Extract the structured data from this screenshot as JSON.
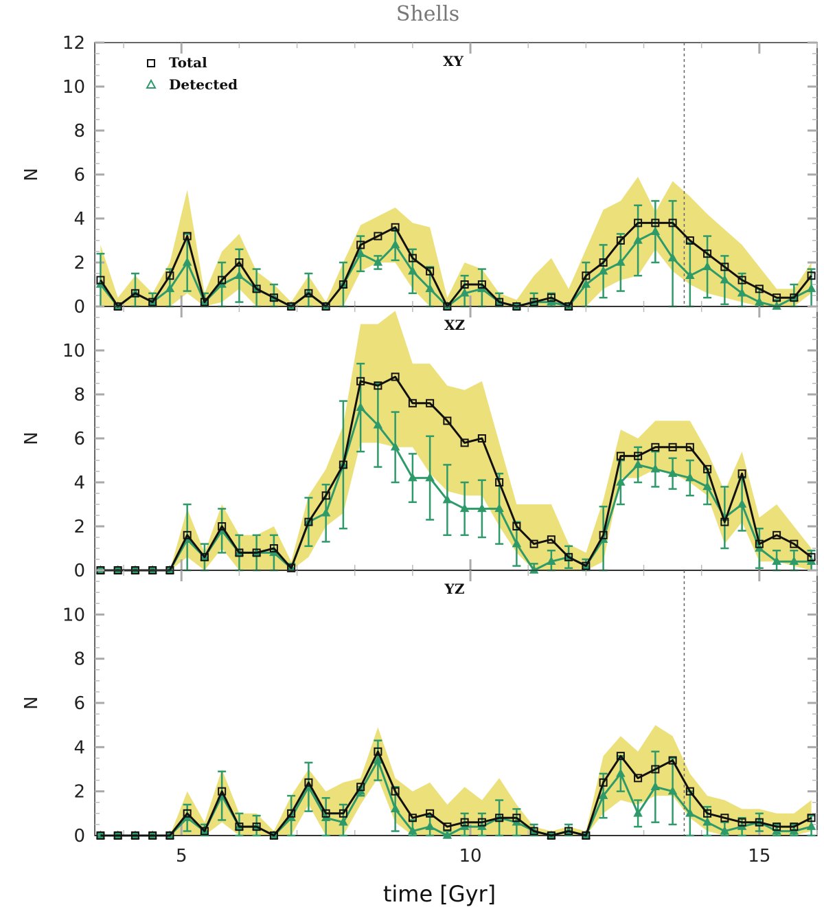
{
  "chart_data": {
    "type": "line",
    "title": "Shells",
    "xlabel": "time [Gyr]",
    "ylabel": "N",
    "xlim": [
      3.5,
      16.0
    ],
    "x_ticks": [
      5,
      10,
      15
    ],
    "y_ticks": [
      0,
      2,
      4,
      6,
      8,
      10,
      12
    ],
    "vline_x": 13.7,
    "colors": {
      "total": "#111111",
      "detected": "#2e9a6a",
      "band": "#ece07a"
    },
    "legend": {
      "total_label": "Total",
      "detected_label": "Detected"
    },
    "x": [
      3.6,
      3.9,
      4.2,
      4.5,
      4.8,
      5.1,
      5.4,
      5.7,
      6.0,
      6.3,
      6.6,
      6.9,
      7.2,
      7.5,
      7.8,
      8.1,
      8.4,
      8.7,
      9.0,
      9.3,
      9.6,
      9.9,
      10.2,
      10.5,
      10.8,
      11.1,
      11.4,
      11.7,
      12.0,
      12.3,
      12.6,
      12.9,
      13.2,
      13.5,
      13.8,
      14.1,
      14.4,
      14.7,
      15.0,
      15.3,
      15.6,
      15.9
    ],
    "panels": [
      {
        "label": "XY",
        "ylim": [
          0,
          12
        ],
        "total": [
          1.2,
          0,
          0.6,
          0.2,
          1.4,
          3.2,
          0.2,
          1.2,
          2.0,
          0.8,
          0.4,
          0,
          0.6,
          0,
          1.0,
          2.8,
          3.2,
          3.6,
          2.2,
          1.6,
          0,
          1.0,
          1.0,
          0.2,
          0,
          0.2,
          0.4,
          0,
          1.4,
          2.0,
          3.0,
          3.8,
          3.8,
          3.8,
          3.0,
          2.4,
          1.8,
          1.2,
          0.8,
          0.4,
          0.4,
          1.4
        ],
        "detected": [
          1.0,
          0,
          0.6,
          0.2,
          0.8,
          2.0,
          0.2,
          1.0,
          1.4,
          0.8,
          0.4,
          0,
          0.6,
          0,
          1.0,
          2.4,
          2.0,
          2.8,
          1.6,
          0.8,
          0,
          0.6,
          0.8,
          0.2,
          0,
          0.2,
          0.2,
          0,
          1.0,
          1.6,
          2.0,
          3.0,
          3.4,
          2.2,
          1.4,
          1.8,
          1.2,
          0.6,
          0.2,
          0,
          0.4,
          0.8
        ],
        "error": [
          1.4,
          0.1,
          0.9,
          0.4,
          0.9,
          1.3,
          0.4,
          1.0,
          1.2,
          0.9,
          0.6,
          0.1,
          0.9,
          0.1,
          1.0,
          0.8,
          0.3,
          0.7,
          1.0,
          1.0,
          0.1,
          0.8,
          0.9,
          0.4,
          0.1,
          0.4,
          0.4,
          0.1,
          1.0,
          1.2,
          1.3,
          1.6,
          1.4,
          2.6,
          1.5,
          1.4,
          1.1,
          0.9,
          0.6,
          0.3,
          0.6,
          0.9
        ],
        "band_upper": [
          2.8,
          0.4,
          1.4,
          0.6,
          2.0,
          5.3,
          0.6,
          2.5,
          3.3,
          1.6,
          1.0,
          0.2,
          1.4,
          0.2,
          2.0,
          3.7,
          4.1,
          4.5,
          3.8,
          3.6,
          0.4,
          2.0,
          1.7,
          0.6,
          0.3,
          1.4,
          2.2,
          0.8,
          2.6,
          4.4,
          4.8,
          5.9,
          4.3,
          5.7,
          5.0,
          4.2,
          3.5,
          2.8,
          1.8,
          0.8,
          0.8,
          2.0
        ],
        "band_lower": [
          0,
          0,
          0,
          0,
          0,
          0.6,
          0,
          0.2,
          0.8,
          0,
          0,
          0,
          0,
          0,
          0,
          1.6,
          2.0,
          2.0,
          0.8,
          0,
          0,
          0,
          0,
          0,
          0,
          0,
          0,
          0,
          0,
          0.8,
          1.2,
          1.4,
          2.6,
          1.6,
          1.0,
          0.6,
          0.4,
          0.2,
          0,
          0,
          0,
          0.6
        ]
      },
      {
        "label": "XZ",
        "ylim": [
          0,
          12
        ],
        "total": [
          0,
          0,
          0,
          0,
          0,
          1.6,
          0.6,
          2.0,
          0.8,
          0.8,
          1.0,
          0.1,
          2.2,
          3.4,
          4.8,
          8.6,
          8.4,
          8.8,
          7.6,
          7.6,
          6.8,
          5.8,
          6.0,
          4.0,
          2.0,
          1.2,
          1.4,
          0.6,
          0.2,
          1.6,
          5.2,
          5.2,
          5.6,
          5.6,
          5.6,
          4.6,
          2.2,
          4.4,
          1.2,
          1.6,
          1.2,
          0.6
        ],
        "detected": [
          0,
          0,
          0,
          0,
          0,
          1.4,
          0.6,
          1.8,
          0.8,
          0.8,
          0.8,
          0.1,
          2.2,
          2.6,
          4.8,
          7.4,
          6.6,
          5.6,
          4.2,
          4.2,
          3.2,
          2.8,
          2.8,
          2.8,
          1.2,
          0,
          0.4,
          0.6,
          0.2,
          1.4,
          4.0,
          4.8,
          4.6,
          4.4,
          4.2,
          3.8,
          2.4,
          3.0,
          1.0,
          0.4,
          0.4,
          0.4
        ],
        "error": [
          0.1,
          0.1,
          0.1,
          0.1,
          0.1,
          1.6,
          0.6,
          1.0,
          0.8,
          0.8,
          0.8,
          0.2,
          1.1,
          1.3,
          2.9,
          2.0,
          1.9,
          1.6,
          1.1,
          1.9,
          1.6,
          1.2,
          1.3,
          1.6,
          1.0,
          0.3,
          0.5,
          0.5,
          0.3,
          1.5,
          1.0,
          0.8,
          0.8,
          0.7,
          0.8,
          0.8,
          1.4,
          1.2,
          0.9,
          0.5,
          0.5,
          0.5
        ],
        "band_upper": [
          0,
          0,
          0,
          0,
          0,
          2.8,
          0.8,
          3.0,
          1.6,
          1.6,
          2.0,
          0.4,
          3.4,
          4.6,
          6.6,
          11.2,
          11.2,
          11.8,
          9.4,
          9.4,
          8.4,
          8.2,
          8.6,
          5.8,
          3.0,
          3.0,
          3.0,
          1.2,
          0.8,
          3.2,
          6.4,
          6.0,
          6.8,
          6.8,
          6.8,
          5.4,
          3.6,
          5.4,
          2.4,
          3.0,
          2.0,
          1.0
        ],
        "band_lower": [
          0,
          0,
          0,
          0,
          0,
          0.6,
          0,
          1.0,
          0,
          0,
          0,
          0,
          0.6,
          2.0,
          2.6,
          5.8,
          5.8,
          5.6,
          5.6,
          4.4,
          3.6,
          3.4,
          3.4,
          2.0,
          0.8,
          0,
          0,
          0,
          0,
          0.4,
          4.2,
          4.2,
          4.6,
          4.4,
          4.0,
          3.4,
          1.2,
          2.2,
          0.4,
          0.4,
          0.2,
          0
        ]
      },
      {
        "label": "YZ",
        "ylim": [
          0,
          12
        ],
        "total": [
          0,
          0,
          0,
          0,
          0,
          1.0,
          0.2,
          2.0,
          0.4,
          0.4,
          0,
          1.0,
          2.4,
          1.0,
          1.0,
          2.2,
          3.8,
          2.0,
          0.8,
          1.0,
          0.4,
          0.6,
          0.6,
          0.8,
          0.8,
          0.2,
          0,
          0.2,
          0,
          2.4,
          3.6,
          2.6,
          3.0,
          3.4,
          2.0,
          1.0,
          0.8,
          0.6,
          0.6,
          0.4,
          0.4,
          0.8
        ],
        "detected": [
          0,
          0,
          0,
          0,
          0,
          0.8,
          0.2,
          1.8,
          0.4,
          0.4,
          0,
          0.8,
          2.2,
          0.8,
          0.6,
          2.0,
          3.4,
          1.2,
          0.2,
          0.4,
          0,
          0.4,
          0.4,
          0.8,
          0.6,
          0.2,
          0,
          0.2,
          0,
          1.8,
          2.8,
          1.0,
          2.2,
          2.0,
          1.0,
          0.6,
          0.2,
          0.4,
          0.6,
          0.2,
          0.2,
          0.4
        ],
        "error": [
          0.1,
          0.1,
          0.1,
          0.1,
          0.1,
          0.6,
          0.3,
          1.1,
          0.6,
          0.5,
          0.1,
          1.0,
          1.1,
          0.9,
          0.8,
          0.2,
          0.9,
          1.0,
          0.5,
          0.5,
          0.2,
          0.6,
          0.6,
          0.8,
          0.6,
          0.3,
          0.1,
          0.3,
          0.1,
          1.0,
          0.8,
          0.6,
          1.6,
          1.5,
          1.0,
          0.7,
          0.4,
          0.4,
          0.4,
          0.3,
          0.3,
          0.5
        ],
        "band_upper": [
          0,
          0,
          0,
          0,
          0,
          2.0,
          0.6,
          3.0,
          1.0,
          1.0,
          0.2,
          1.8,
          3.0,
          2.0,
          2.4,
          2.6,
          4.9,
          2.6,
          2.0,
          2.4,
          1.4,
          2.2,
          1.6,
          2.6,
          1.4,
          0.4,
          0.2,
          0.4,
          0.2,
          3.6,
          4.5,
          3.8,
          5.0,
          4.5,
          2.8,
          1.8,
          1.6,
          1.2,
          1.2,
          1.0,
          1.0,
          1.6
        ],
        "band_lower": [
          0,
          0,
          0,
          0,
          0,
          0,
          0,
          0.6,
          0,
          0,
          0,
          0,
          1.4,
          0,
          0,
          1.4,
          2.6,
          0.6,
          0,
          0,
          0,
          0,
          0,
          0,
          0,
          0,
          0,
          0,
          0,
          1.0,
          1.6,
          1.4,
          1.8,
          1.8,
          0.8,
          0.2,
          0,
          0,
          0,
          0,
          0,
          0.2
        ]
      }
    ]
  }
}
